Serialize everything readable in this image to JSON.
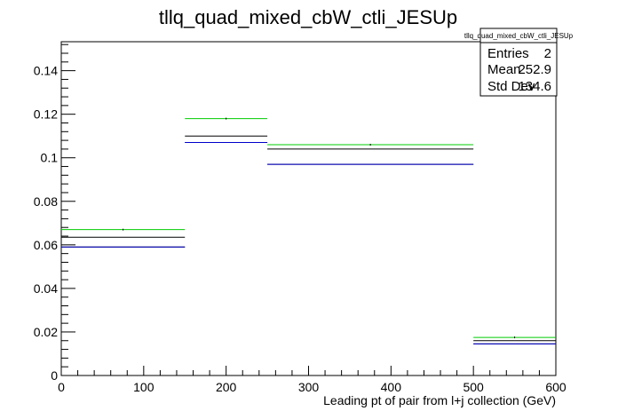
{
  "chart_data": {
    "type": "step",
    "title": "tllq_quad_mixed_cbW_ctli_JESUp",
    "xlabel": "Leading pt of pair from l+j collection (GeV)",
    "ylabel": "",
    "xlim": [
      0,
      600
    ],
    "ylim": [
      0,
      0.1533
    ],
    "x_ticks": [
      0,
      100,
      200,
      300,
      400,
      500,
      600
    ],
    "x_tick_labels": [
      "0",
      "100",
      "200",
      "300",
      "400",
      "500",
      "600"
    ],
    "y_ticks": [
      0,
      0.02,
      0.04,
      0.06,
      0.08,
      0.1,
      0.12,
      0.14
    ],
    "y_tick_labels": [
      "0",
      "0.02",
      "0.04",
      "0.06",
      "0.08",
      "0.1",
      "0.12",
      "0.14"
    ],
    "bins": [
      [
        0,
        150
      ],
      [
        150,
        250
      ],
      [
        250,
        500
      ],
      [
        500,
        600
      ]
    ],
    "series": [
      {
        "color": "#00cc00",
        "values": [
          0.067,
          0.118,
          0.106,
          0.0175
        ]
      },
      {
        "color": "#000000",
        "values": [
          0.0635,
          0.11,
          0.104,
          0.016
        ]
      },
      {
        "color": "#000000",
        "values": [
          0.059,
          0.107,
          0.097,
          0.0145
        ]
      },
      {
        "color": "#0000cc",
        "values": [
          0.059,
          0.107,
          0.097,
          0.0145
        ]
      }
    ],
    "grid": false,
    "stats_box": {
      "title": "tllq_quad_mixed_cbW_ctli_JESUp",
      "rows": [
        {
          "label": "Entries",
          "value": "2"
        },
        {
          "label": "Mean",
          "value": "252.9"
        },
        {
          "label": "Std Dev",
          "value": "134.6"
        }
      ]
    }
  }
}
